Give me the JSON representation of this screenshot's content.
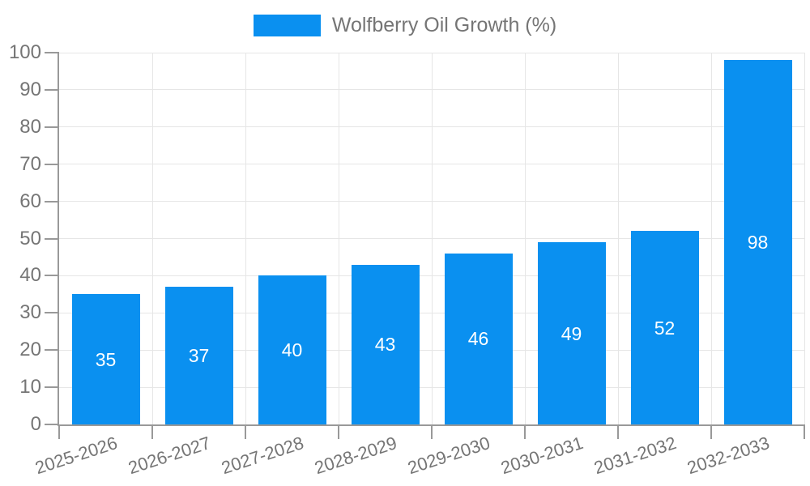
{
  "chart_data": {
    "type": "bar",
    "title": "",
    "legend": {
      "label": "Wolfberry Oil Growth (%)",
      "position": "top-center"
    },
    "categories": [
      "2025-2026",
      "2026-2027",
      "2027-2028",
      "2028-2029",
      "2029-2030",
      "2030-2031",
      "2031-2032",
      "2032-2033"
    ],
    "series": [
      {
        "name": "Wolfberry Oil Growth (%)",
        "values": [
          35,
          37,
          40,
          43,
          46,
          49,
          52,
          98
        ]
      }
    ],
    "value_labels": {
      "shown": true,
      "position": "inside-center"
    },
    "xlabel": "",
    "ylabel": "",
    "ylim": [
      0,
      100
    ],
    "y_ticks": [
      0,
      10,
      20,
      30,
      40,
      50,
      60,
      70,
      80,
      90,
      100
    ],
    "grid": true,
    "x_label_rotation_deg": -18
  },
  "colors": {
    "bar": "#0a90f0",
    "axis": "#999999",
    "grid": "#e6e6e6",
    "text": "#757575",
    "value_label": "#ffffff",
    "background": "#ffffff"
  }
}
